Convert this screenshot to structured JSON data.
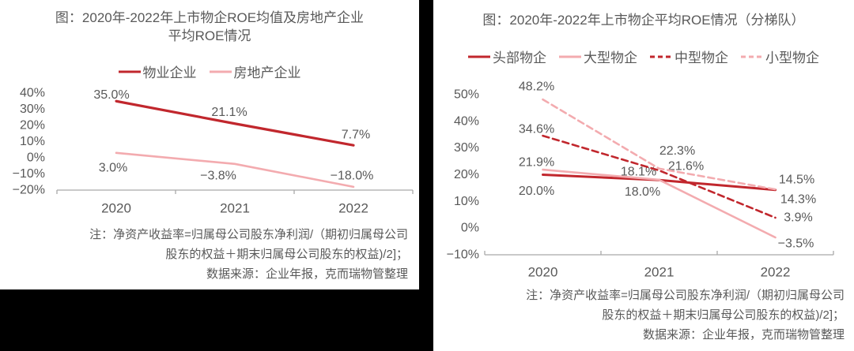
{
  "colors": {
    "dark_red": "#C1272D",
    "light_pink": "#F3ABAF",
    "text": "#595959",
    "axis": "#A9A9A9",
    "background": "#000000",
    "card": "#FFFFFF"
  },
  "left_panel": {
    "title_lines": [
      "图：2020年-2022年上市物企ROE均值及房地产企业",
      "平均ROE情况"
    ],
    "note_lines": [
      "注：净资产收益率=归属母公司股东净利润/（期初归属母公司",
      "股东的权益＋期末归属母公司股东的权益)/2]；",
      "数据来源：企业年报，克而瑞物管整理"
    ]
  },
  "right_panel": {
    "title_lines": [
      "图：2020年-2022年上市物企平均ROE情况（分梯队）"
    ],
    "note_lines": [
      "注：净资产收益率=归属母公司股东净利润/（期初归属母公司",
      "股东的权益＋期末归属母公司股东的权益)/2]；",
      "数据来源：企业年报，克而瑞物管整理"
    ]
  },
  "chart_data": [
    {
      "type": "line",
      "title": "图：2020年-2022年上市物企ROE均值及房地产企业平均ROE情况",
      "categories": [
        "2020",
        "2021",
        "2022"
      ],
      "series": [
        {
          "key": "property-companies",
          "name": "物业企业",
          "color": "#C1272D",
          "dash": false,
          "values": [
            35.0,
            21.1,
            7.7
          ],
          "labels": [
            "35.0%",
            "21.1%",
            "7.7%"
          ]
        },
        {
          "key": "real-estate-companies",
          "name": "房地产企业",
          "color": "#F3ABAF",
          "dash": false,
          "values": [
            3.0,
            -3.8,
            -18.0
          ],
          "labels": [
            "3.0%",
            "−3.8%",
            "−18.0%"
          ]
        }
      ],
      "ylim": [
        -20,
        40
      ],
      "yticks": [
        "40%",
        "30%",
        "20%",
        "10%",
        "0%",
        "−10%",
        "−20%"
      ],
      "grid": false,
      "legend_position": "top"
    },
    {
      "type": "line",
      "title": "图：2020年-2022年上市物企平均ROE情况（分梯队）",
      "categories": [
        "2020",
        "2021",
        "2022"
      ],
      "series": [
        {
          "key": "top-tier",
          "name": "头部物企",
          "color": "#C1272D",
          "dash": false,
          "values": [
            20.0,
            18.0,
            14.3
          ],
          "labels": [
            "20.0%",
            "18.0%",
            "14.3%"
          ]
        },
        {
          "key": "large-tier",
          "name": "大型物企",
          "color": "#F3ABAF",
          "dash": false,
          "values": [
            21.9,
            18.1,
            -3.5
          ],
          "labels": [
            "21.9%",
            "18.1%",
            "−3.5%"
          ]
        },
        {
          "key": "mid-tier",
          "name": "中型物企",
          "color": "#C1272D",
          "dash": true,
          "values": [
            34.6,
            21.6,
            3.9
          ],
          "labels": [
            "34.6%",
            "21.6%",
            "3.9%"
          ]
        },
        {
          "key": "small-tier",
          "name": "小型物企",
          "color": "#F3ABAF",
          "dash": true,
          "values": [
            48.2,
            22.3,
            14.5
          ],
          "labels": [
            "48.2%",
            "22.3%",
            "14.5%"
          ]
        }
      ],
      "ylim": [
        -10,
        50
      ],
      "yticks": [
        "50%",
        "40%",
        "30%",
        "20%",
        "10%",
        "0%",
        "−10%"
      ],
      "grid": false,
      "legend_position": "top"
    }
  ]
}
